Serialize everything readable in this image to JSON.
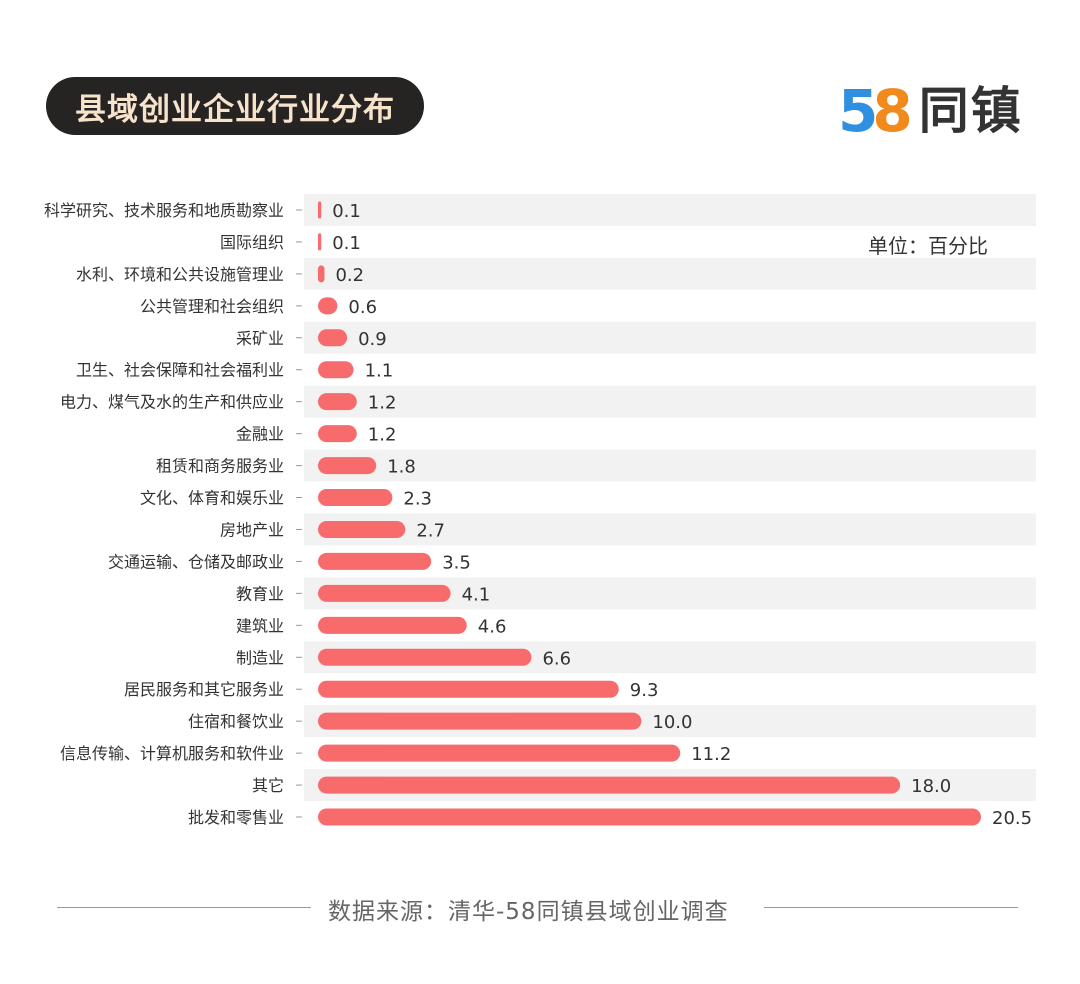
{
  "header": {
    "title": "县域创业企业行业分布",
    "logo_digits_5": "5",
    "logo_digits_8": "8",
    "logo_text": "同镇"
  },
  "unit_label": "单位：百分比",
  "footer": {
    "source": "数据来源：清华-58同镇县域创业调查"
  },
  "colors": {
    "bar": "#f76b6d",
    "row_band": "#f2f2f2",
    "title_bg": "#262323",
    "title_text": "#f7e3cb"
  },
  "chart_data": {
    "type": "bar",
    "orientation": "horizontal",
    "title": "县域创业企业行业分布",
    "unit": "单位：百分比",
    "categories": [
      "科学研究、技术服务和地质勘察业",
      "国际组织",
      "水利、环境和公共设施管理业",
      "公共管理和社会组织",
      "采矿业",
      "卫生、社会保障和社会福利业",
      "电力、煤气及水的生产和供应业",
      "金融业",
      "租赁和商务服务业",
      "文化、体育和娱乐业",
      "房地产业",
      "交通运输、仓储及邮政业",
      "教育业",
      "建筑业",
      "制造业",
      "居民服务和其它服务业",
      "住宿和餐饮业",
      "信息传输、计算机服务和软件业",
      "其它",
      "批发和零售业"
    ],
    "values": [
      0.1,
      0.1,
      0.2,
      0.6,
      0.9,
      1.1,
      1.2,
      1.2,
      1.8,
      2.3,
      2.7,
      3.5,
      4.1,
      4.6,
      6.6,
      9.3,
      10.0,
      11.2,
      18.0,
      20.5
    ],
    "value_labels": [
      "0.1",
      "0.1",
      "0.2",
      "0.6",
      "0.9",
      "1.1",
      "1.2",
      "1.2",
      "1.8",
      "2.3",
      "2.7",
      "3.5",
      "4.1",
      "4.6",
      "6.6",
      "9.3",
      "10.0",
      "11.2",
      "18.0",
      "20.5"
    ],
    "xlim": [
      0,
      20.5
    ],
    "grid": false,
    "data_labels": true
  }
}
